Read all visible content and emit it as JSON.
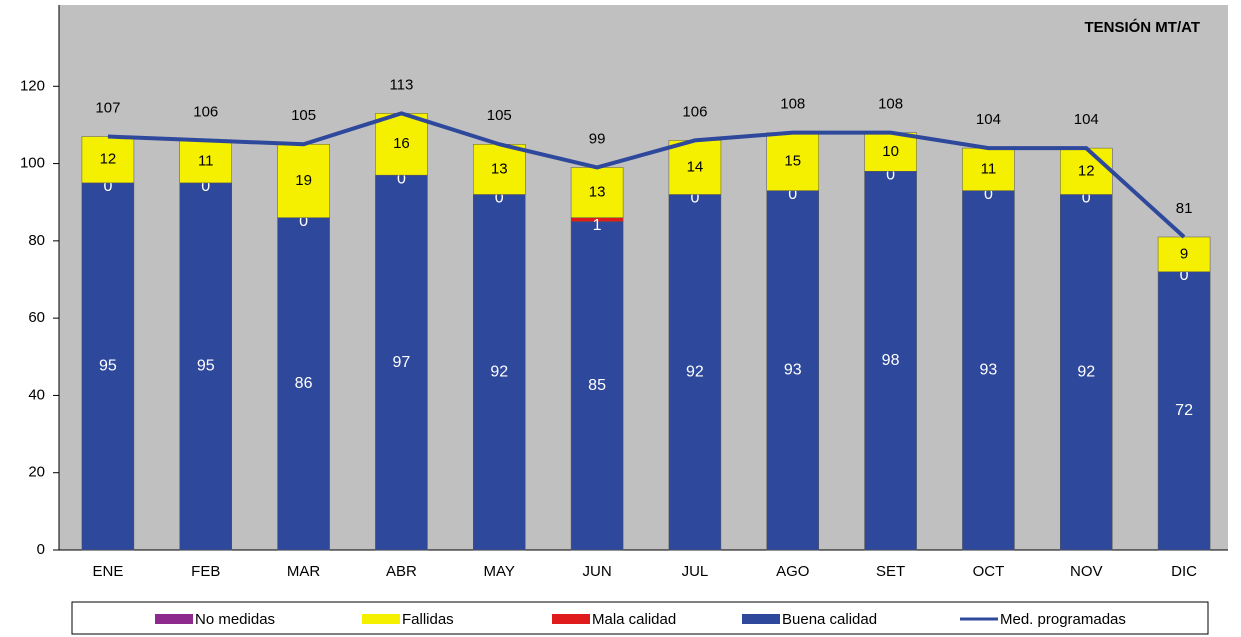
{
  "chart_data": {
    "type": "bar",
    "stacked": true,
    "title": "TENSIÓN MT/AT",
    "categories": [
      "ENE",
      "FEB",
      "MAR",
      "ABR",
      "MAY",
      "JUN",
      "JUL",
      "AGO",
      "SET",
      "OCT",
      "NOV",
      "DIC"
    ],
    "series": [
      {
        "name": "Buena calidad",
        "color": "#2e489c",
        "values": [
          95,
          95,
          86,
          97,
          92,
          85,
          92,
          93,
          98,
          93,
          92,
          72
        ]
      },
      {
        "name": "Mala calidad",
        "color": "#e01b1b",
        "values": [
          0,
          0,
          0,
          0,
          0,
          1,
          0,
          0,
          0,
          0,
          0,
          0
        ]
      },
      {
        "name": "Fallidas",
        "color": "#f5f000",
        "values": [
          12,
          11,
          19,
          16,
          13,
          13,
          14,
          15,
          10,
          11,
          12,
          9
        ]
      },
      {
        "name": "No medidas",
        "color": "#8e2a8e",
        "values": [
          0,
          0,
          0,
          0,
          0,
          0,
          0,
          0,
          0,
          0,
          0,
          0
        ]
      },
      {
        "name": "Med. programadas",
        "type": "line",
        "color": "#2e489c",
        "values": [
          107,
          106,
          105,
          113,
          105,
          99,
          106,
          108,
          108,
          104,
          104,
          81
        ]
      }
    ],
    "legend_order": [
      "No medidas",
      "Fallidas",
      "Mala calidad",
      "Buena calidad",
      "Med. programadas"
    ],
    "ylim": [
      0,
      140
    ],
    "yticks": [
      0,
      20,
      40,
      60,
      80,
      100,
      120
    ],
    "grid": true
  }
}
